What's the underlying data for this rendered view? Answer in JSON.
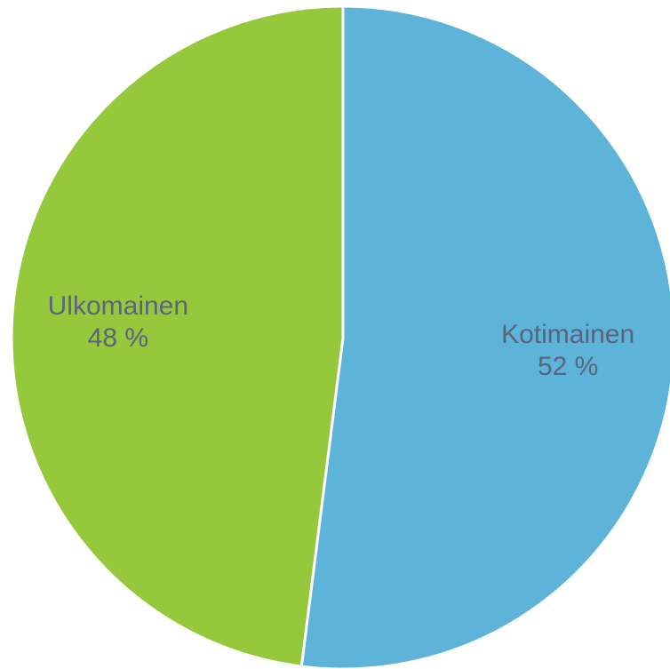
{
  "chart_data": {
    "type": "pie",
    "categories": [
      "Kotimainen",
      "Ulkomainen"
    ],
    "values": [
      52,
      48
    ],
    "value_labels": [
      "52 %",
      "48 %"
    ],
    "colors": [
      "#5eb3d9",
      "#96c83c"
    ]
  }
}
